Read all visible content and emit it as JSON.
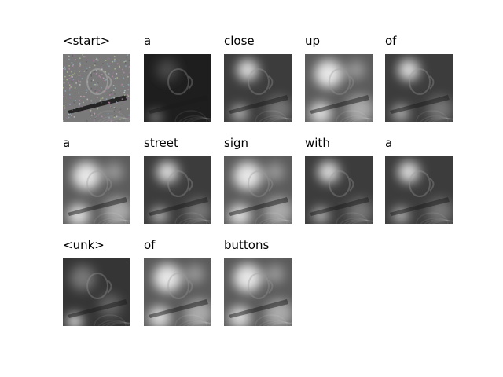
{
  "panels": [
    {
      "word": "<start>",
      "style": "noisy"
    },
    {
      "word": "a",
      "style": "dark"
    },
    {
      "word": "close",
      "style": "mid"
    },
    {
      "word": "up",
      "style": "bright"
    },
    {
      "word": "of",
      "style": "mid"
    },
    {
      "word": "a",
      "style": "bright"
    },
    {
      "word": "street",
      "style": "mid"
    },
    {
      "word": "sign",
      "style": "bright"
    },
    {
      "word": "with",
      "style": "mid"
    },
    {
      "word": "a",
      "style": "mid"
    },
    {
      "word": "<unk>",
      "style": "dim"
    },
    {
      "word": "of",
      "style": "bright"
    },
    {
      "word": "buttons",
      "style": "bright"
    }
  ]
}
